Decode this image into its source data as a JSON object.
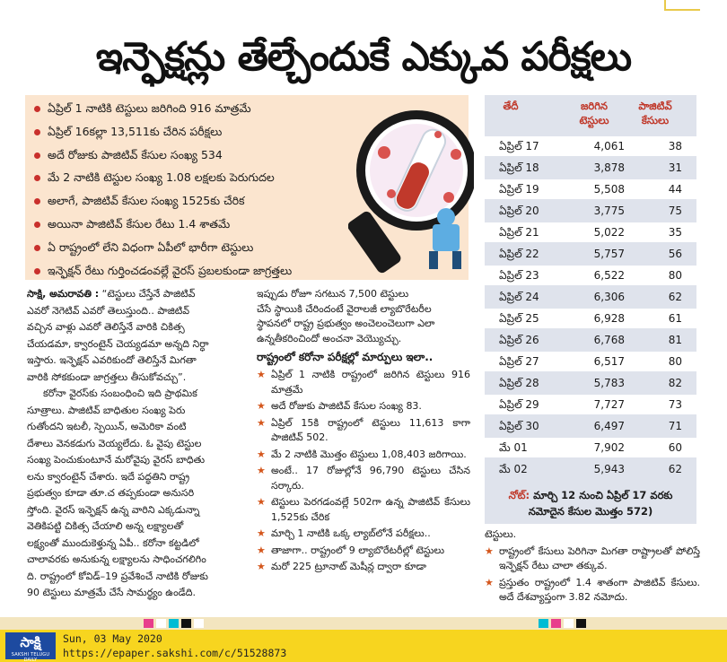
{
  "headline": "ఇన్ఫెక్షన్లు తేల్చేందుకే ఎక్కువ పరీక్షలు",
  "highlights": [
    "ఏప్రిల్ 1 నాటికి టెస్టులు జరిగింది 916 మాత్రమే",
    "ఏప్రిల్ 16కల్లా 13,511కు చేరిన పరీక్షలు",
    "అదే రోజుకు పాజిటివ్ కేసుల సంఖ్య 534",
    "మే 2 నాటికి టెస్టుల సంఖ్య 1.08 లక్షలకు పెరుగుదల",
    "అలాగే, పాజిటివ్ కేసుల సంఖ్య 1525కు చేరిక",
    "అయినా పాజిటివ్ కేసుల రేటు 1.4 శాతమే",
    "ఏ రాష్ట్రంలో లేని విధంగా ఏపీలో భారీగా టెస్టులు",
    "ఇన్ఫెక్షన్ రేటు గుర్తించడంవల్లే వైరస్ ప్రబలకుండా జాగ్రత్తలు"
  ],
  "table": {
    "headers": [
      "తేదీ",
      "జరిగిన టెస్టులు",
      "పాజిటివ్ కేసులు"
    ],
    "rows": [
      {
        "date": "ఏప్రిల్ 17",
        "tests": "4,061",
        "positive": "38"
      },
      {
        "date": "ఏప్రిల్ 18",
        "tests": "3,878",
        "positive": "31"
      },
      {
        "date": "ఏప్రిల్ 19",
        "tests": "5,508",
        "positive": "44"
      },
      {
        "date": "ఏప్రిల్ 20",
        "tests": "3,775",
        "positive": "75"
      },
      {
        "date": "ఏప్రిల్ 21",
        "tests": "5,022",
        "positive": "35"
      },
      {
        "date": "ఏప్రిల్ 22",
        "tests": "5,757",
        "positive": "56"
      },
      {
        "date": "ఏప్రిల్ 23",
        "tests": "6,522",
        "positive": "80"
      },
      {
        "date": "ఏప్రిల్ 24",
        "tests": "6,306",
        "positive": "62"
      },
      {
        "date": "ఏప్రిల్ 25",
        "tests": "6,928",
        "positive": "61"
      },
      {
        "date": "ఏప్రిల్ 26",
        "tests": "6,768",
        "positive": "81"
      },
      {
        "date": "ఏప్రిల్ 27",
        "tests": "6,517",
        "positive": "80"
      },
      {
        "date": "ఏప్రిల్ 28",
        "tests": "5,783",
        "positive": "82"
      },
      {
        "date": "ఏప్రిల్ 29",
        "tests": "7,727",
        "positive": "73"
      },
      {
        "date": "ఏప్రిల్ 30",
        "tests": "6,497",
        "positive": "71"
      },
      {
        "date": "మే 01",
        "tests": "7,902",
        "positive": "60"
      },
      {
        "date": "మే 02",
        "tests": "5,943",
        "positive": "62"
      }
    ],
    "note_label": "నోట్:",
    "note_text_1": "మార్చి 12 నుంచి ఏప్రిల్ 17 వరకు",
    "note_text_2": "నమోదైన కేసుల మొత్తం 572)"
  },
  "column1": {
    "dateline": "సాక్షి, అమరావతి :",
    "lines": [
      "“టెస్టులు చేస్తేనే పాజిటివ్",
      "ఎవరో నెగెటివ్ ఎవరో తెలుస్తుంది.. పాజిటివ్",
      "వచ్చిన వాళ్లు ఎవరో తెలిస్తేనే వారికి చికిత్స",
      "చేయడమా, క్వారంటైన్ చెయ్యడమా అన్నది నిర్ధా",
      "ఇస్తారు. ఇన్ఫెక్షన్ ఎవరికుందో తెలిస్తేనే మిగతా",
      "వారికి సోకకుండా జాగ్రత్తలు తీసుకోవచ్చు”.",
      "కరోనా వైరస్‌కు సంబంధించి ఇది ప్రాథమిక",
      "సూత్రాలు. పాజిటివ్ బాధితుల సంఖ్య పెరు",
      "గుతోందని ఇటలీ, స్పెయిన్, అమెరికా వంటి",
      "దేశాలు వెనకడుగు వెయ్యలేదు. ఓ వైపు టెస్టుల",
      "సంఖ్య పెంచుకుంటూనే మరోవైపు వైరస్ బాధితు",
      "లను క్వారంటైన్ చేశారు. ఇదే పద్ధతిని రాష్ట్ర",
      "ప్రభుత్వం కూడా తూ.చ తప్పకుండా అనుసరి",
      "స్తోంది. వైరస్ ఇన్ఫెక్షన్ ఉన్న వారిని ఎక్కడున్నా",
      "వెతికిపట్టి చికిత్స చేయాలి అన్న లక్ష్యాలతో",
      "లక్ష్యంతో ముందుకెళ్తున్న ఏపీ.. కరోనా కట్టడిలో",
      "చాలావరకు అనుకున్న లక్ష్యాలను సాధించగలిగిం",
      "ది. రాష్ట్రంలో కోవిడ్–19 ప్రవేశించే నాటికి రోజుకు",
      "90 టెస్టులు మాత్రమే చేసే సామర్థ్యం ఉండేది."
    ]
  },
  "column2": {
    "lines": [
      "ఇప్పుడు రోజూ సగటున 7,500 టెస్టులు",
      "చేసే స్థాయికి చేరిందంటే వైరాలజీ ల్యాబొరేటరీల",
      "స్థాపనలో రాష్ట్ర ప్రభుత్వం అంచెలంచెలుగా ఎలా",
      "ఉన్నతీకరించిందో అంచనా వెయ్యొచ్చు."
    ],
    "subhead": "రాష్ట్రంలో కరోనా పరీక్షల్లో మార్పులు ఇలా..",
    "bullets": [
      "ఏప్రిల్ 1 నాటికి రాష్ట్రంలో జరిగిన టెస్టులు 916 మాత్రమే",
      "అదే రోజుకు పాజిటివ్ కేసుల సంఖ్య 83.",
      "ఏప్రిల్ 15కి రాష్ట్రంలో టెస్టులు 11,613 కాగా పాజిటివ్ 502.",
      "మే 2 నాటికి మొత్తం టెస్టులు 1,08,403 జరిగాయి.",
      "అంటే.. 17 రోజుల్లోనే 96,790 టెస్టులు చేసిన సర్కారు.",
      "టెస్టులు పెరగడంవల్లే 502గా ఉన్న పాజిటివ్ కేసులు 1,525కు చేరిక",
      "మార్చి 1 నాటికి ఒక్క ల్యాబ్‌లోనే పరీక్షలు..",
      "తాజాగా.. రాష్ట్రంలో 9 ల్యాబొరేటరీల్లో టెస్టులు",
      "మరో 225 ట్రూనాట్ మెషీన్ల ద్వారా కూడా"
    ]
  },
  "column3": {
    "lead": "టెస్టులు.",
    "bullets": [
      "రాష్ట్రంలో కేసులు పెరిగినా మిగతా రాష్ట్రాలతో పోలిస్తే ఇన్ఫెక్షన్ రేటు చాలా తక్కువ.",
      "ప్రస్తుతం రాష్ట్రంలో 1.4 శాతంగా పాజిటివ్ కేసులు. అదే దేశవ్యాప్తంగా 3.82 నమోదు."
    ]
  },
  "footer": {
    "logo": "సాక్షి",
    "logo_sub": "SAKSHI TELUGU DAILY",
    "date": "Sun, 03 May 2020",
    "url": "https://epaper.sakshi.com/c/51528873"
  },
  "colors": {
    "accent": "#c0392b",
    "infobox_bg": "#fbe5cf",
    "table_bg": "#dfe3ec",
    "footer_bg": "#f7d51f",
    "logo_bg": "#1d4aa0"
  }
}
